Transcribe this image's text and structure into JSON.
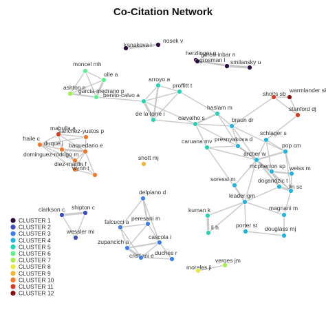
{
  "title": "Co-Citation Network",
  "legend": {
    "placement": "bottom-left",
    "clusters": [
      {
        "label": "CLUSTER 1",
        "color": "#2b0a3d"
      },
      {
        "label": "CLUSTER 2",
        "color": "#3b4cc0"
      },
      {
        "label": "CLUSTER 3",
        "color": "#3f7ee8"
      },
      {
        "label": "CLUSTER 4",
        "color": "#21b5e0"
      },
      {
        "label": "CLUSTER 5",
        "color": "#24d5b4"
      },
      {
        "label": "CLUSTER 6",
        "color": "#5ef08a"
      },
      {
        "label": "CLUSTER 7",
        "color": "#a4ee4e"
      },
      {
        "label": "CLUSTER 8",
        "color": "#e7e83a"
      },
      {
        "label": "CLUSTER 9",
        "color": "#f4b432"
      },
      {
        "label": "CLUSTER 10",
        "color": "#f2782a"
      },
      {
        "label": "CLUSTER 11",
        "color": "#d63c1f"
      },
      {
        "label": "CLUSTER 12",
        "color": "#8a0e0e"
      }
    ]
  },
  "nodes": [
    {
      "id": "kanakova",
      "label": "kanakova l",
      "cluster": 1
    },
    {
      "id": "nosek",
      "label": "nosek v",
      "cluster": 1
    },
    {
      "id": "goren",
      "label": "goren-inbar n",
      "cluster": 1
    },
    {
      "id": "herzlinger",
      "label": "herzlinger g",
      "cluster": 1
    },
    {
      "id": "grosman",
      "label": "grosman l",
      "cluster": 1
    },
    {
      "id": "smilansky",
      "label": "smilansky u",
      "cluster": 1
    },
    {
      "id": "moncel",
      "label": "moncel mh",
      "cluster": 6
    },
    {
      "id": "olle",
      "label": "olle a",
      "cluster": 6
    },
    {
      "id": "ashton",
      "label": "ashton n",
      "cluster": 7
    },
    {
      "id": "garcia",
      "label": "garcia-medrano p",
      "cluster": 6
    },
    {
      "id": "arroyo",
      "label": "arroyo a",
      "cluster": 5
    },
    {
      "id": "proffitt",
      "label": "proffitt t",
      "cluster": 5
    },
    {
      "id": "benito",
      "label": "benito-calvo a",
      "cluster": 5
    },
    {
      "id": "delatorre",
      "label": "de la torre i",
      "cluster": 5
    },
    {
      "id": "haslam",
      "label": "haslam m",
      "cluster": 5
    },
    {
      "id": "carvalho",
      "label": "carvalho s",
      "cluster": 5
    },
    {
      "id": "braun",
      "label": "braun dr",
      "cluster": 4
    },
    {
      "id": "caruana",
      "label": "caruana mv",
      "cluster": 5
    },
    {
      "id": "shoits",
      "label": "shoits sb",
      "cluster": 11
    },
    {
      "id": "warmlander",
      "label": "warmlander skts",
      "cluster": 12
    },
    {
      "id": "stanford",
      "label": "stanford dj",
      "cluster": 11
    },
    {
      "id": "mabulla",
      "label": "mabulla a",
      "cluster": 11
    },
    {
      "id": "sanchez",
      "label": "sanchez-yustos p",
      "cluster": 10
    },
    {
      "id": "fraile",
      "label": "fraile c",
      "cluster": 10
    },
    {
      "id": "duque",
      "label": "duque j",
      "cluster": 10
    },
    {
      "id": "baquedano",
      "label": "baquedano e",
      "cluster": 10
    },
    {
      "id": "dominguez",
      "label": "dominguez-rodrigo m",
      "cluster": 10
    },
    {
      "id": "diezmartin",
      "label": "diez-martin f",
      "cluster": 10
    },
    {
      "id": "wynn",
      "label": "wynn t",
      "cluster": 10
    },
    {
      "id": "shott",
      "label": "shott mj",
      "cluster": 9
    },
    {
      "id": "schlager",
      "label": "schlager s",
      "cluster": 4
    },
    {
      "id": "presnyakova",
      "label": "presnyakova d",
      "cluster": 4
    },
    {
      "id": "popcm",
      "label": "pop cm",
      "cluster": 4
    },
    {
      "id": "archer",
      "label": "archer w",
      "cluster": 4
    },
    {
      "id": "mcpherron",
      "label": "mcpherron sp",
      "cluster": 4
    },
    {
      "id": "weiss",
      "label": "weiss m",
      "cluster": 4
    },
    {
      "id": "soressi",
      "label": "soressi m",
      "cluster": 4
    },
    {
      "id": "dogandzic",
      "label": "dogandzic t",
      "cluster": 4
    },
    {
      "id": "linsc",
      "label": "lin sc",
      "cluster": 4
    },
    {
      "id": "leader",
      "label": "leader gm",
      "cluster": 4
    },
    {
      "id": "magnani",
      "label": "magnani m",
      "cluster": 4
    },
    {
      "id": "kuman",
      "label": "kuman k",
      "cluster": 5
    },
    {
      "id": "lih",
      "label": "li h",
      "cluster": 5
    },
    {
      "id": "porter",
      "label": "porter st",
      "cluster": 4
    },
    {
      "id": "douglass",
      "label": "douglass mj",
      "cluster": 4
    },
    {
      "id": "clarkson",
      "label": "clarkson c",
      "cluster": 2
    },
    {
      "id": "shipton",
      "label": "shipton c",
      "cluster": 2
    },
    {
      "id": "wessler",
      "label": "wessler mi",
      "cluster": 2
    },
    {
      "id": "delpiano",
      "label": "delpiano d",
      "cluster": 3
    },
    {
      "id": "falcucci",
      "label": "falcucci a",
      "cluster": 3
    },
    {
      "id": "peresani",
      "label": "peresani m",
      "cluster": 3
    },
    {
      "id": "cascola",
      "label": "cascola i",
      "cluster": 3
    },
    {
      "id": "zupancich",
      "label": "zupancich a",
      "cluster": 3
    },
    {
      "id": "cristiani",
      "label": "cristiani e",
      "cluster": 3
    },
    {
      "id": "duches",
      "label": "duches r",
      "cluster": 3
    },
    {
      "id": "verges",
      "label": "verges jm",
      "cluster": 7
    },
    {
      "id": "morales",
      "label": "morales ji",
      "cluster": 8
    }
  ],
  "edges": [
    [
      "kanakova",
      "nosek",
      3
    ],
    [
      "goren",
      "herzlinger",
      1
    ],
    [
      "herzlinger",
      "grosman",
      1
    ],
    [
      "grosman",
      "smilansky",
      3
    ],
    [
      "goren",
      "grosman",
      1
    ],
    [
      "herzlinger",
      "smilansky",
      1
    ],
    [
      "moncel",
      "olle",
      1
    ],
    [
      "olle",
      "garcia",
      3
    ],
    [
      "ashton",
      "garcia",
      2
    ],
    [
      "moncel",
      "garcia",
      1
    ],
    [
      "ashton",
      "olle",
      1
    ],
    [
      "moncel",
      "ashton",
      1
    ],
    [
      "garcia",
      "benito",
      1
    ],
    [
      "arroyo",
      "benito",
      1
    ],
    [
      "arroyo",
      "proffitt",
      1
    ],
    [
      "arroyo",
      "delatorre",
      2
    ],
    [
      "benito",
      "delatorre",
      3
    ],
    [
      "proffitt",
      "delatorre",
      1
    ],
    [
      "proffitt",
      "benito",
      1
    ],
    [
      "delatorre",
      "carvalho",
      1
    ],
    [
      "benito",
      "carvalho",
      1
    ],
    [
      "haslam",
      "carvalho",
      2
    ],
    [
      "haslam",
      "braun",
      1
    ],
    [
      "carvalho",
      "braun",
      1
    ],
    [
      "carvalho",
      "caruana",
      1
    ],
    [
      "carvalho",
      "presnyakova",
      1
    ],
    [
      "haslam",
      "proffitt",
      1
    ],
    [
      "caruana",
      "presnyakova",
      1
    ],
    [
      "braun",
      "presnyakova",
      1
    ],
    [
      "haslam",
      "presnyakova",
      1
    ],
    [
      "presnyakova",
      "archer",
      2
    ],
    [
      "caruana",
      "archer",
      1
    ],
    [
      "braun",
      "archer",
      1
    ],
    [
      "archer",
      "schlager",
      1
    ],
    [
      "archer",
      "popcm",
      2
    ],
    [
      "schlager",
      "popcm",
      1
    ],
    [
      "archer",
      "mcpherron",
      1
    ],
    [
      "archer",
      "dogandzic",
      2
    ],
    [
      "mcpherron",
      "weiss",
      2
    ],
    [
      "mcpherron",
      "dogandzic",
      1
    ],
    [
      "dogandzic",
      "linsc",
      3
    ],
    [
      "weiss",
      "linsc",
      1
    ],
    [
      "mcpherron",
      "linsc",
      1
    ],
    [
      "popcm",
      "linsc",
      1
    ],
    [
      "popcm",
      "weiss",
      1
    ],
    [
      "archer",
      "soressi",
      1
    ],
    [
      "soressi",
      "leader",
      1
    ],
    [
      "archer",
      "leader",
      1
    ],
    [
      "leader",
      "kuman",
      1
    ],
    [
      "kuman",
      "lih",
      3
    ],
    [
      "leader",
      "lih",
      1
    ],
    [
      "leader",
      "porter",
      1
    ],
    [
      "porter",
      "douglass",
      1
    ],
    [
      "magnani",
      "douglass",
      1
    ],
    [
      "leader",
      "magnani",
      1
    ],
    [
      "magnani",
      "linsc",
      1
    ],
    [
      "leader",
      "dogandzic",
      1
    ],
    [
      "presnyakova",
      "mcpherron",
      1
    ],
    [
      "shoits",
      "stanford",
      1
    ],
    [
      "shoits",
      "warmlander",
      1
    ],
    [
      "warmlander",
      "stanford",
      1
    ],
    [
      "shoits",
      "braun",
      1
    ],
    [
      "stanford",
      "schlager",
      1
    ],
    [
      "archer",
      "linsc",
      1
    ],
    [
      "schlager",
      "mcpherron",
      1
    ],
    [
      "braun",
      "popcm",
      1
    ],
    [
      "caruana",
      "leader",
      1
    ],
    [
      "mabulla",
      "sanchez",
      1
    ],
    [
      "mabulla",
      "fraile",
      1
    ],
    [
      "mabulla",
      "duque",
      1
    ],
    [
      "mabulla",
      "baquedano",
      1
    ],
    [
      "fraile",
      "sanchez",
      1
    ],
    [
      "fraile",
      "duque",
      1
    ],
    [
      "duque",
      "baquedano",
      3
    ],
    [
      "fraile",
      "dominguez",
      1
    ],
    [
      "duque",
      "dominguez",
      2
    ],
    [
      "dominguez",
      "diezmartin",
      2
    ],
    [
      "fraile",
      "diezmartin",
      1
    ],
    [
      "baquedano",
      "diezmartin",
      1
    ],
    [
      "diezmartin",
      "wynn",
      1
    ],
    [
      "duque",
      "wynn",
      1
    ],
    [
      "baquedano",
      "wynn",
      1
    ],
    [
      "sanchez",
      "baquedano",
      1
    ],
    [
      "dominguez",
      "baquedano",
      1
    ],
    [
      "clarkson",
      "shipton",
      3
    ],
    [
      "clarkson",
      "wessler",
      1
    ],
    [
      "shipton",
      "wessler",
      1
    ],
    [
      "delpiano",
      "peresani",
      2
    ],
    [
      "delpiano",
      "cascola",
      1
    ],
    [
      "delpiano",
      "falcucci",
      1
    ],
    [
      "falcucci",
      "peresani",
      1
    ],
    [
      "peresani",
      "cascola",
      1
    ],
    [
      "falcucci",
      "zupancich",
      1
    ],
    [
      "zupancich",
      "cristiani",
      3
    ],
    [
      "zupancich",
      "cascola",
      2
    ],
    [
      "cristiani",
      "cascola",
      1
    ],
    [
      "cascola",
      "duches",
      1
    ],
    [
      "cristiani",
      "duches",
      1
    ],
    [
      "falcucci",
      "cristiani",
      1
    ],
    [
      "peresani",
      "zupancich",
      1
    ],
    [
      "verges",
      "morales",
      1
    ]
  ]
}
